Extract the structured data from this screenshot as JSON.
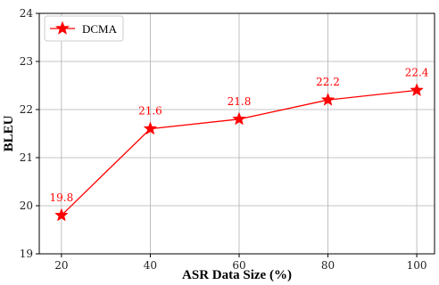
{
  "chart_data": {
    "type": "line",
    "xlabel": "ASR Data Size (%)",
    "ylabel": "BLEU",
    "x": [
      20,
      40,
      60,
      80,
      100
    ],
    "xlim": [
      15,
      104
    ],
    "ylim": [
      19,
      24
    ],
    "xticks": [
      20,
      40,
      60,
      80,
      100
    ],
    "yticks": [
      19,
      20,
      21,
      22,
      23,
      24
    ],
    "grid": true,
    "legend_position": "top-left",
    "series": [
      {
        "name": "DCMA",
        "values": [
          19.8,
          21.6,
          21.8,
          22.2,
          22.4
        ],
        "labels": [
          "19.8",
          "21.6",
          "21.8",
          "22.2",
          "22.4"
        ],
        "color": "#ff0000",
        "marker": "star"
      }
    ]
  }
}
